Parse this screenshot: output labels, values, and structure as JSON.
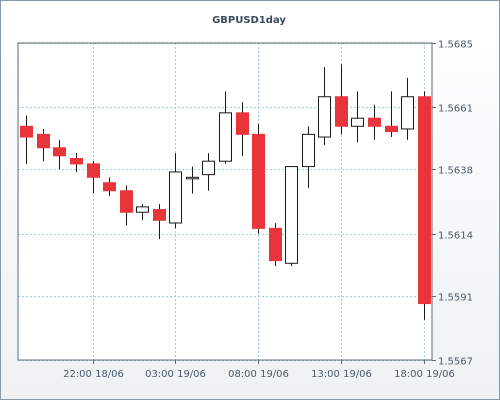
{
  "chart_data": {
    "type": "candlestick",
    "title": "GBPUSD1day",
    "ylim": [
      1.5567,
      1.5685
    ],
    "ytick_labels": [
      "1.5685",
      "1.5661",
      "1.5638",
      "1.5614",
      "1.5591",
      "1.5567"
    ],
    "ytick_values": [
      1.5685,
      1.5661,
      1.5638,
      1.5614,
      1.5591,
      1.5567
    ],
    "xtick_labels": [
      "22:00 18/06",
      "03:00 19/06",
      "08:00 19/06",
      "13:00 19/06",
      "18:00 19/06"
    ],
    "xtick_candle_index": [
      4,
      9,
      14,
      19,
      24
    ],
    "grid": true,
    "up_color": "#ffffff",
    "down_color": "#e8353b",
    "candles": [
      {
        "open": 1.5654,
        "high": 1.5658,
        "low": 1.564,
        "close": 1.565
      },
      {
        "open": 1.5651,
        "high": 1.5653,
        "low": 1.5641,
        "close": 1.5646
      },
      {
        "open": 1.5646,
        "high": 1.5649,
        "low": 1.5638,
        "close": 1.5643
      },
      {
        "open": 1.5642,
        "high": 1.5644,
        "low": 1.5637,
        "close": 1.564
      },
      {
        "open": 1.564,
        "high": 1.5641,
        "low": 1.5629,
        "close": 1.5635
      },
      {
        "open": 1.5633,
        "high": 1.5635,
        "low": 1.5628,
        "close": 1.563
      },
      {
        "open": 1.563,
        "high": 1.5632,
        "low": 1.5617,
        "close": 1.5622
      },
      {
        "open": 1.5622,
        "high": 1.5625,
        "low": 1.5619,
        "close": 1.5624
      },
      {
        "open": 1.5623,
        "high": 1.5625,
        "low": 1.5612,
        "close": 1.5619
      },
      {
        "open": 1.5618,
        "high": 1.5644,
        "low": 1.5616,
        "close": 1.5637
      },
      {
        "open": 1.5635,
        "high": 1.5639,
        "low": 1.5629,
        "close": 1.5635
      },
      {
        "open": 1.5636,
        "high": 1.5644,
        "low": 1.563,
        "close": 1.5641
      },
      {
        "open": 1.5641,
        "high": 1.5667,
        "low": 1.564,
        "close": 1.5659
      },
      {
        "open": 1.5659,
        "high": 1.5663,
        "low": 1.5643,
        "close": 1.5651
      },
      {
        "open": 1.5651,
        "high": 1.5655,
        "low": 1.5614,
        "close": 1.5616
      },
      {
        "open": 1.5616,
        "high": 1.5618,
        "low": 1.5602,
        "close": 1.5604
      },
      {
        "open": 1.5603,
        "high": 1.5639,
        "low": 1.5602,
        "close": 1.5639
      },
      {
        "open": 1.5639,
        "high": 1.5654,
        "low": 1.5631,
        "close": 1.5651
      },
      {
        "open": 1.565,
        "high": 1.5676,
        "low": 1.5647,
        "close": 1.5665
      },
      {
        "open": 1.5665,
        "high": 1.5677,
        "low": 1.5651,
        "close": 1.5654
      },
      {
        "open": 1.5654,
        "high": 1.5667,
        "low": 1.5648,
        "close": 1.5657
      },
      {
        "open": 1.5657,
        "high": 1.5662,
        "low": 1.5649,
        "close": 1.5654
      },
      {
        "open": 1.5654,
        "high": 1.5667,
        "low": 1.565,
        "close": 1.5652
      },
      {
        "open": 1.5653,
        "high": 1.5672,
        "low": 1.5649,
        "close": 1.5665
      },
      {
        "open": 1.5665,
        "high": 1.5667,
        "low": 1.5582,
        "close": 1.5588
      }
    ]
  }
}
